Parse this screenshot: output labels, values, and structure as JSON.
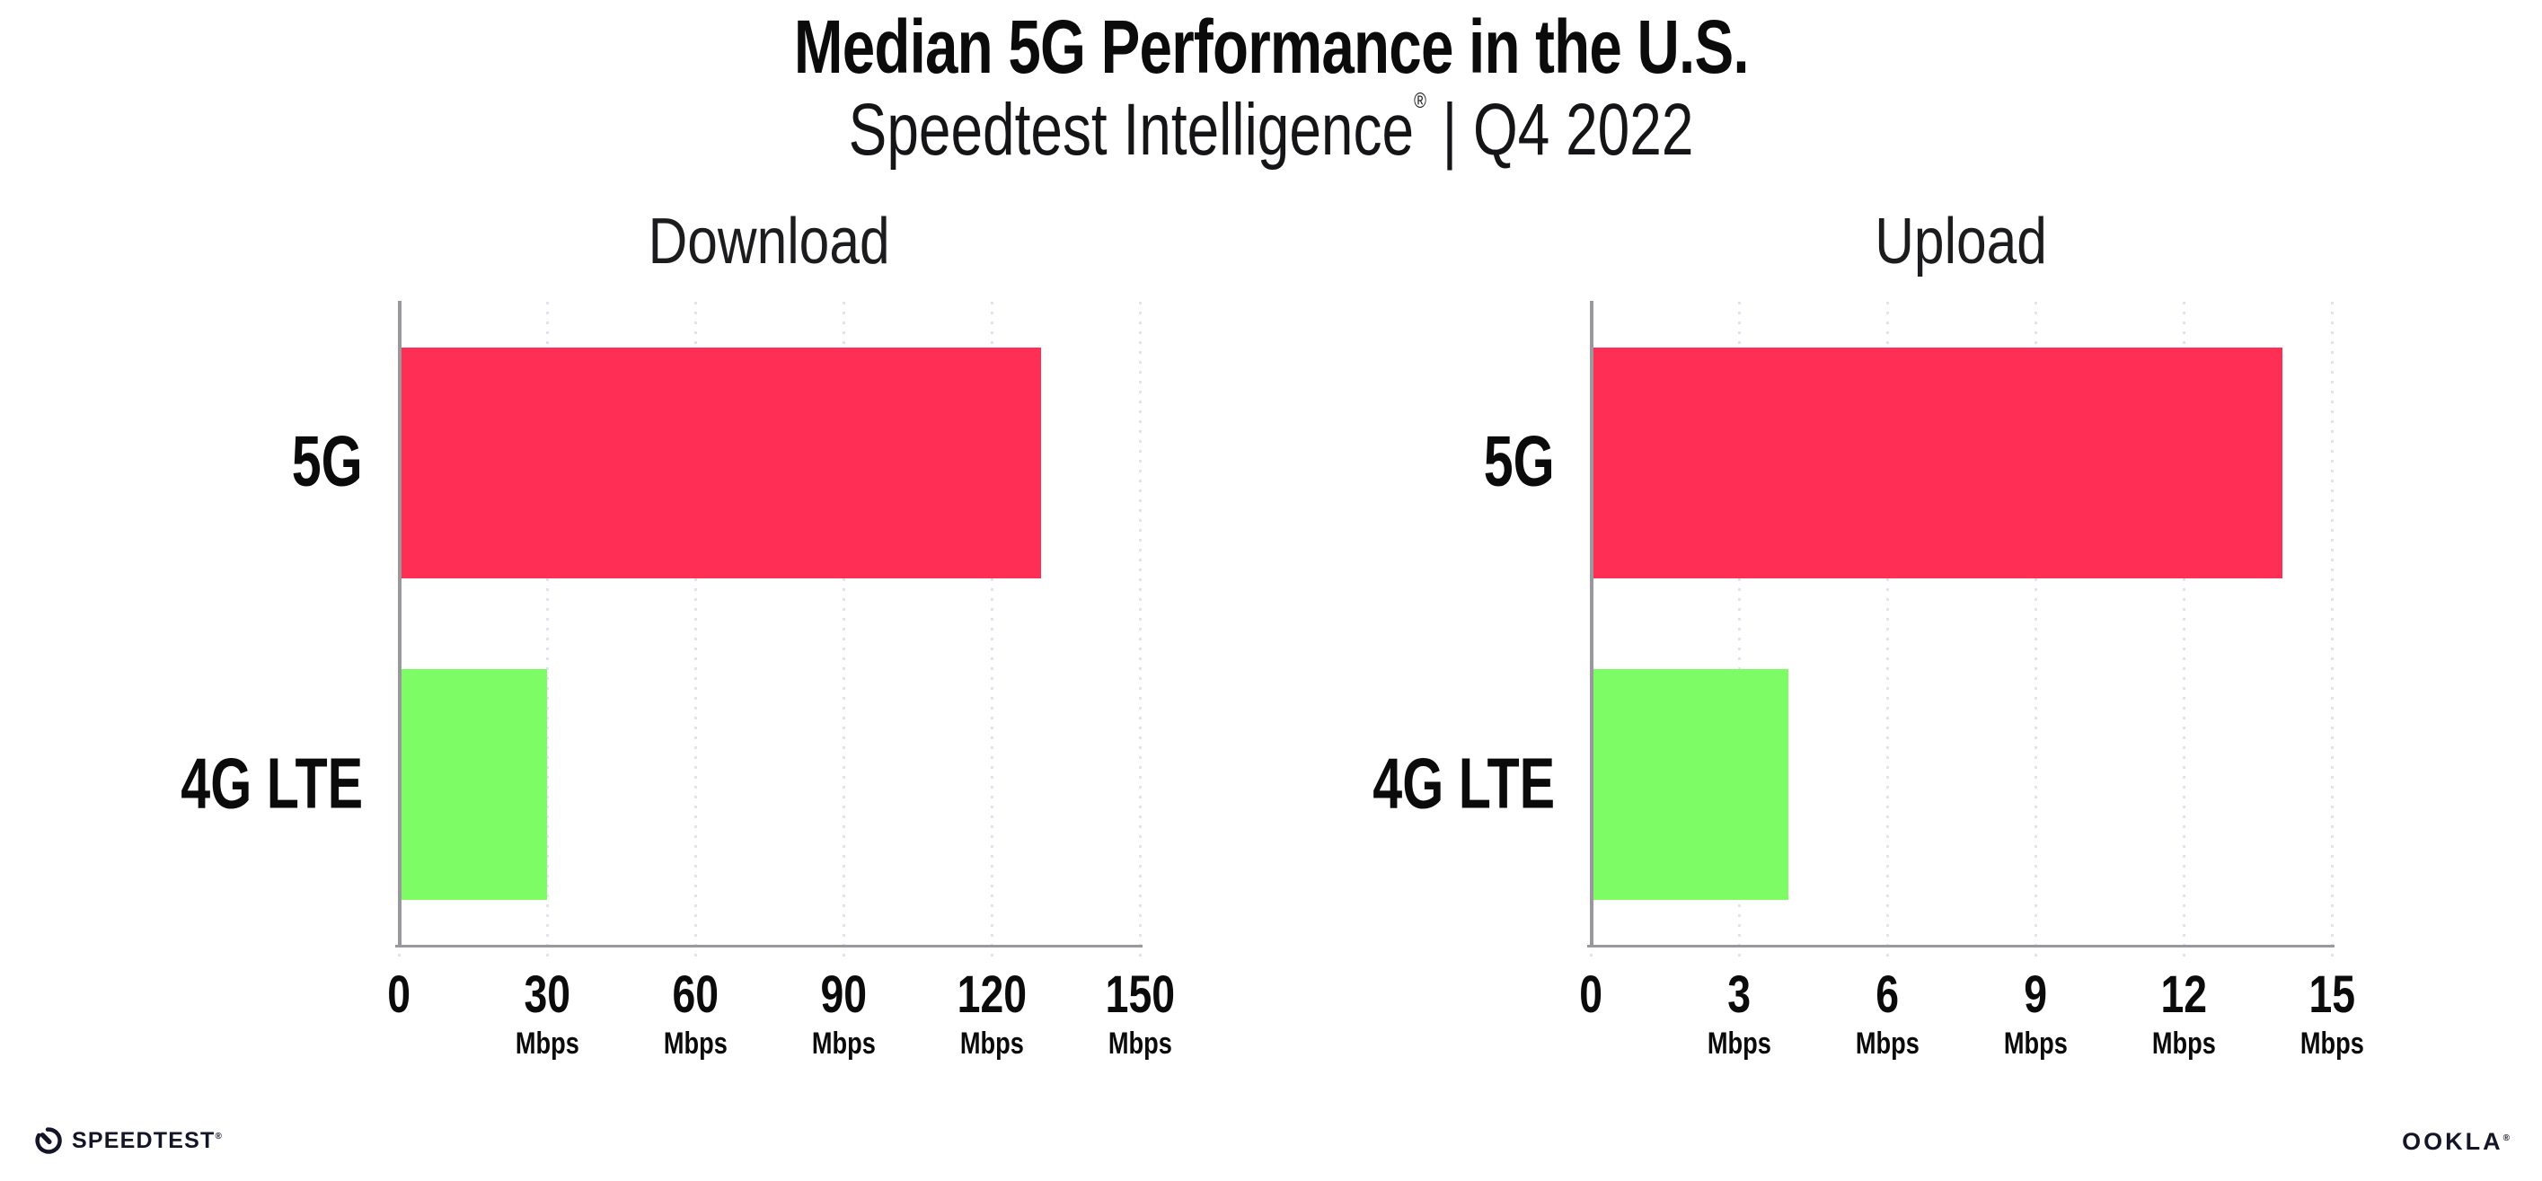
{
  "header": {
    "title": "Median 5G Performance in the U.S.",
    "subtitle_brand": "Speedtest Intelligence",
    "subtitle_registered": "®",
    "subtitle_rest": " | Q4 2022"
  },
  "chart_data": [
    {
      "type": "bar",
      "orientation": "horizontal",
      "title": "Download",
      "categories": [
        "5G",
        "4G LTE"
      ],
      "values": [
        130,
        30
      ],
      "unit": "Mbps",
      "xlim": [
        0,
        150
      ],
      "xticks": [
        0,
        30,
        60,
        90,
        120,
        150
      ],
      "series_colors": [
        "#FF2E55",
        "#7EFC66"
      ],
      "grid": "dotted-vertical-at-ticks",
      "legend": "none"
    },
    {
      "type": "bar",
      "orientation": "horizontal",
      "title": "Upload",
      "categories": [
        "5G",
        "4G LTE"
      ],
      "values": [
        14,
        4
      ],
      "unit": "Mbps",
      "xlim": [
        0,
        15
      ],
      "xticks": [
        0,
        3,
        6,
        9,
        12,
        15
      ],
      "series_colors": [
        "#FF2E55",
        "#7EFC66"
      ],
      "grid": "dotted-vertical-at-ticks",
      "legend": "none"
    }
  ],
  "footer": {
    "speedtest_wordmark": "SPEEDTEST",
    "speedtest_mark": "®",
    "ookla_wordmark": "OOKLA",
    "ookla_mark": "®"
  },
  "colors": {
    "bar_5g": "#FF2E55",
    "bar_4g_lte": "#7EFC66",
    "gridline": "#E3E3EF",
    "axis_line": "#98989D",
    "text": "#0B0B0C",
    "background": "#FFFFFF"
  }
}
